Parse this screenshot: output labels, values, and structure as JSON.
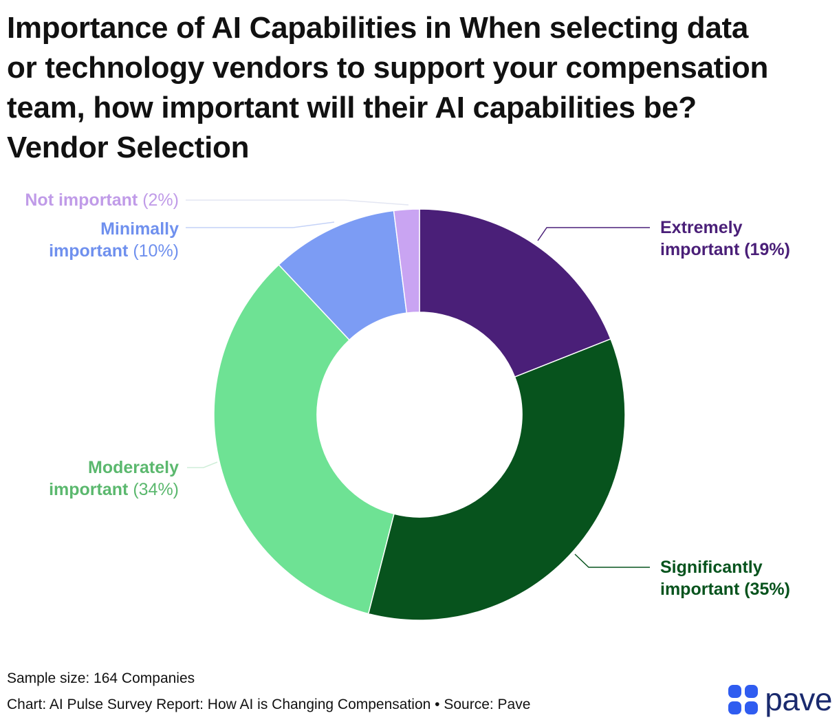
{
  "title_lines": [
    "Importance of AI Capabilities in When selecting data",
    "or technology vendors to support your compensation",
    "team, how important will their AI capabilities be?",
    "Vendor Selection"
  ],
  "chart_data": {
    "type": "pie",
    "donut": true,
    "title": "Importance of AI Capabilities in When selecting data or technology vendors to support your compensation team, how important will their AI capabilities be? Vendor Selection",
    "categories": [
      "Extremely important",
      "Significantly important",
      "Moderately important",
      "Minimally important",
      "Not important"
    ],
    "values": [
      19,
      35,
      34,
      10,
      2
    ],
    "colors": [
      "#4a1f78",
      "#07531d",
      "#6ee294",
      "#7c9cf4",
      "#c9a4f2"
    ],
    "label_colors": [
      "#4a1f78",
      "#07531d",
      "#5bb86e",
      "#6f90ee",
      "#c09be8"
    ],
    "labels": [
      {
        "lines": [
          {
            "cat": "Extremely"
          },
          {
            "cat": "important ",
            "pct": "(19%)"
          }
        ],
        "side": "right"
      },
      {
        "lines": [
          {
            "cat": "Significantly"
          },
          {
            "cat": "important ",
            "pct": "(35%)"
          }
        ],
        "side": "right"
      },
      {
        "lines": [
          {
            "cat": "Moderately"
          },
          {
            "cat": "important ",
            "pct": "(34%)"
          }
        ],
        "side": "left"
      },
      {
        "lines": [
          {
            "cat": "Minimally"
          },
          {
            "cat": "important ",
            "pct": "(10%)"
          }
        ],
        "side": "left"
      },
      {
        "lines": [
          {
            "cat": "Not important ",
            "pct": "(2%)"
          }
        ],
        "side": "left"
      }
    ]
  },
  "footer": {
    "sample_size": "Sample size: 164 Companies",
    "source": "Chart: AI Pulse Survey Report: How AI is Changing Compensation • Source: Pave"
  },
  "logo": {
    "text": "pave",
    "color": "#2f5cf0"
  }
}
